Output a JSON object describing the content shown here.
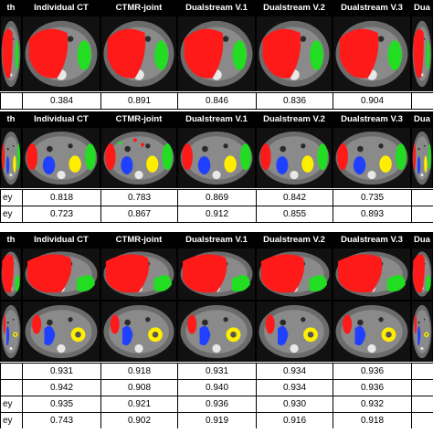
{
  "columns": [
    "th",
    "Individual CT",
    "CTMR-joint",
    "Dualstream V.1",
    "Dualstream V.2",
    "Dualstream V.3",
    "Dua"
  ],
  "section1": {
    "header": [
      "th",
      "Individual CT",
      "CTMR-joint",
      "Dualstream V.1",
      "Dualstream V.2",
      "Dualstream V.3",
      "Dua"
    ],
    "rows": [
      {
        "label": "",
        "values": [
          "0.384",
          "0.891",
          "0.846",
          "0.836",
          "0.904",
          ""
        ]
      }
    ]
  },
  "section2": {
    "header": [
      "th",
      "Individual CT",
      "CTMR-joint",
      "Dualstream V.1",
      "Dualstream V.2",
      "Dualstream V.3",
      "Dua"
    ],
    "rows": [
      {
        "label": "ey",
        "values": [
          "0.818",
          "0.783",
          "0.869",
          "0.842",
          "0.735",
          ""
        ]
      },
      {
        "label": "ey",
        "values": [
          "0.723",
          "0.867",
          "0.912",
          "0.855",
          "0.893",
          ""
        ]
      }
    ]
  },
  "section3": {
    "header": [
      "th",
      "Individual CT",
      "CTMR-joint",
      "Dualstream V.1",
      "Dualstream V.2",
      "Dualstream V.3",
      "Dua"
    ],
    "rows": [
      {
        "label": "",
        "values": [
          "0.931",
          "0.918",
          "0.931",
          "0.934",
          "0.936",
          ""
        ]
      },
      {
        "label": "",
        "values": [
          "0.942",
          "0.908",
          "0.940",
          "0.934",
          "0.936",
          ""
        ]
      },
      {
        "label": "ey",
        "values": [
          "0.935",
          "0.921",
          "0.936",
          "0.930",
          "0.932",
          ""
        ]
      },
      {
        "label": "ey",
        "values": [
          "0.743",
          "0.902",
          "0.919",
          "0.916",
          "0.918",
          ""
        ]
      }
    ]
  },
  "colors": {
    "liver": "#ff1a1a",
    "spleen": "#22dd22",
    "kidney_left": "#2040ff",
    "kidney_right": "#ffee00",
    "background": "#000000"
  }
}
